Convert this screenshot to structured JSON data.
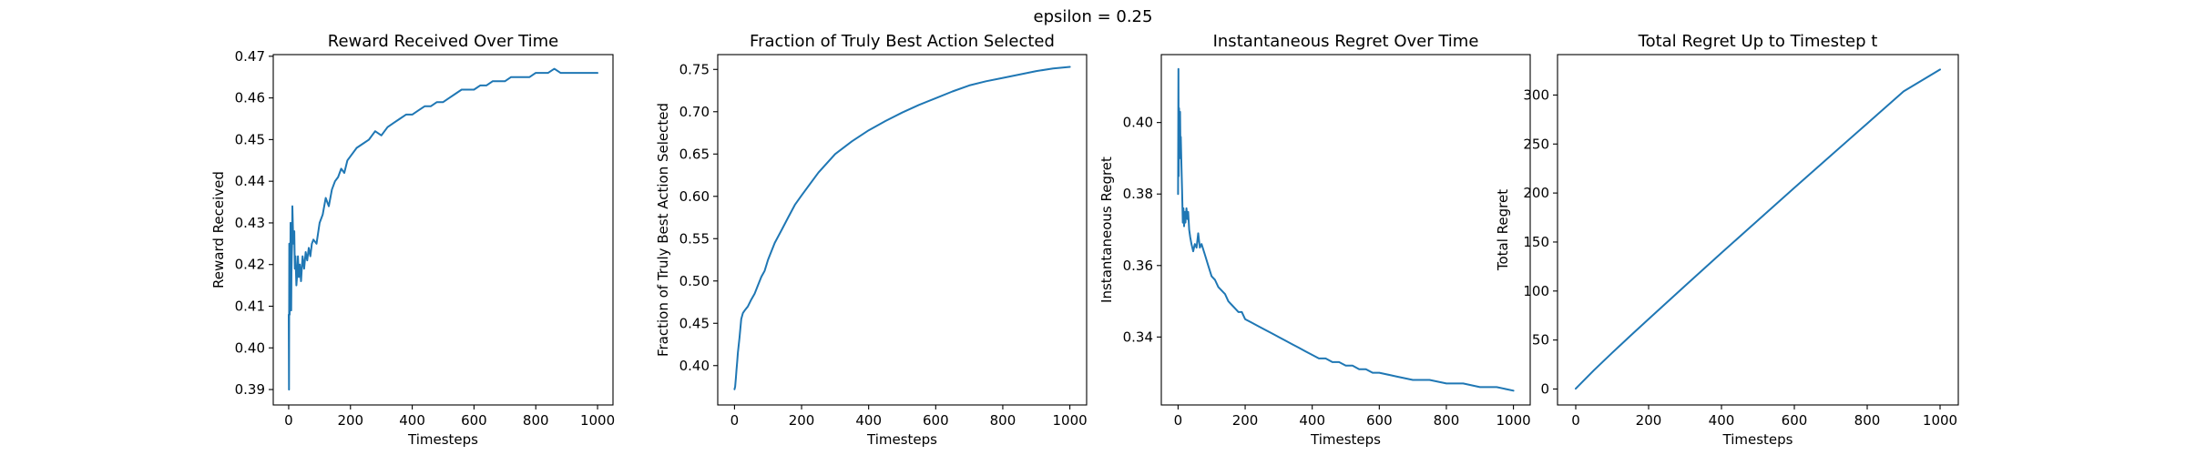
{
  "suptitle": "epsilon = 0.25",
  "chart_data": [
    {
      "type": "line",
      "title": "Reward Received Over Time",
      "xlabel": "Timesteps",
      "ylabel": "Reward Received",
      "xlim": [
        -50,
        1050
      ],
      "ylim": [
        0.3863,
        0.4704
      ],
      "xticks": [
        0,
        200,
        400,
        600,
        800,
        1000
      ],
      "yticks": [
        0.39,
        0.4,
        0.41,
        0.42,
        0.43,
        0.44,
        0.45,
        0.46,
        0.47
      ],
      "ytick_decimals": 2,
      "grid": false,
      "series": [
        {
          "x": [
            0,
            1,
            2,
            3,
            4,
            5,
            6,
            7,
            8,
            9,
            10,
            11,
            12,
            14,
            16,
            18,
            20,
            22,
            25,
            28,
            30,
            33,
            36,
            40,
            45,
            50,
            55,
            60,
            65,
            70,
            75,
            80,
            90,
            100,
            110,
            120,
            130,
            140,
            150,
            160,
            170,
            180,
            190,
            200,
            220,
            240,
            260,
            280,
            300,
            320,
            340,
            360,
            380,
            400,
            420,
            440,
            460,
            480,
            500,
            520,
            540,
            560,
            580,
            600,
            620,
            640,
            660,
            680,
            700,
            720,
            740,
            760,
            780,
            800,
            820,
            840,
            860,
            880,
            900,
            920,
            940,
            960,
            980,
            1000
          ],
          "y": [
            0.408,
            0.39,
            0.425,
            0.408,
            0.418,
            0.412,
            0.43,
            0.413,
            0.409,
            0.418,
            0.422,
            0.425,
            0.434,
            0.428,
            0.425,
            0.428,
            0.419,
            0.422,
            0.415,
            0.418,
            0.422,
            0.417,
            0.42,
            0.416,
            0.422,
            0.419,
            0.423,
            0.421,
            0.424,
            0.422,
            0.425,
            0.426,
            0.425,
            0.43,
            0.432,
            0.436,
            0.434,
            0.438,
            0.44,
            0.441,
            0.443,
            0.442,
            0.445,
            0.446,
            0.448,
            0.449,
            0.45,
            0.452,
            0.451,
            0.453,
            0.454,
            0.455,
            0.456,
            0.456,
            0.457,
            0.458,
            0.458,
            0.459,
            0.459,
            0.46,
            0.461,
            0.462,
            0.462,
            0.462,
            0.463,
            0.463,
            0.464,
            0.464,
            0.464,
            0.465,
            0.465,
            0.465,
            0.465,
            0.466,
            0.466,
            0.466,
            0.467,
            0.466,
            0.466,
            0.466,
            0.466,
            0.466,
            0.466,
            0.466
          ]
        }
      ]
    },
    {
      "type": "line",
      "title": "Fraction of Truly Best Action Selected",
      "xlabel": "Timesteps",
      "ylabel": "Fraction of Truly Best Action Selected",
      "xlim": [
        -50,
        1050
      ],
      "ylim": [
        0.3535,
        0.7675
      ],
      "xticks": [
        0,
        200,
        400,
        600,
        800,
        1000
      ],
      "yticks": [
        0.4,
        0.45,
        0.5,
        0.55,
        0.6,
        0.65,
        0.7,
        0.75
      ],
      "ytick_decimals": 2,
      "grid": false,
      "series": [
        {
          "x": [
            0,
            2,
            4,
            6,
            8,
            10,
            15,
            20,
            25,
            30,
            40,
            50,
            60,
            70,
            80,
            90,
            100,
            120,
            140,
            160,
            180,
            200,
            250,
            300,
            350,
            400,
            450,
            500,
            550,
            600,
            650,
            700,
            750,
            800,
            850,
            900,
            950,
            1000
          ],
          "y": [
            0.372,
            0.375,
            0.385,
            0.395,
            0.405,
            0.415,
            0.433,
            0.455,
            0.462,
            0.465,
            0.47,
            0.478,
            0.485,
            0.495,
            0.505,
            0.512,
            0.525,
            0.545,
            0.56,
            0.575,
            0.59,
            0.601,
            0.628,
            0.65,
            0.665,
            0.678,
            0.689,
            0.699,
            0.708,
            0.716,
            0.724,
            0.731,
            0.736,
            0.74,
            0.744,
            0.748,
            0.751,
            0.753
          ]
        }
      ]
    },
    {
      "type": "line",
      "title": "Instantaneous Regret Over Time",
      "xlabel": "Timesteps",
      "ylabel": "Instantaneous Regret",
      "xlim": [
        -50,
        1050
      ],
      "ylim": [
        0.321,
        0.419
      ],
      "xticks": [
        0,
        200,
        400,
        600,
        800,
        1000
      ],
      "yticks": [
        0.34,
        0.36,
        0.38,
        0.4
      ],
      "ytick_decimals": 2,
      "grid": false,
      "series": [
        {
          "x": [
            0,
            1,
            2,
            3,
            4,
            5,
            6,
            7,
            8,
            10,
            12,
            14,
            16,
            18,
            20,
            22,
            25,
            28,
            30,
            33,
            36,
            40,
            45,
            50,
            55,
            60,
            65,
            70,
            80,
            90,
            100,
            110,
            120,
            130,
            140,
            150,
            160,
            170,
            180,
            190,
            200,
            220,
            240,
            260,
            280,
            300,
            320,
            340,
            360,
            380,
            400,
            420,
            440,
            460,
            480,
            500,
            520,
            540,
            560,
            580,
            600,
            650,
            700,
            750,
            800,
            850,
            900,
            950,
            1000
          ],
          "y": [
            0.38,
            0.415,
            0.385,
            0.404,
            0.398,
            0.39,
            0.403,
            0.393,
            0.396,
            0.388,
            0.381,
            0.372,
            0.376,
            0.371,
            0.375,
            0.372,
            0.376,
            0.373,
            0.375,
            0.37,
            0.368,
            0.366,
            0.364,
            0.366,
            0.365,
            0.369,
            0.365,
            0.366,
            0.363,
            0.36,
            0.357,
            0.356,
            0.354,
            0.353,
            0.352,
            0.35,
            0.349,
            0.348,
            0.347,
            0.347,
            0.345,
            0.344,
            0.343,
            0.342,
            0.341,
            0.34,
            0.339,
            0.338,
            0.337,
            0.336,
            0.335,
            0.334,
            0.334,
            0.333,
            0.333,
            0.332,
            0.332,
            0.331,
            0.331,
            0.33,
            0.33,
            0.329,
            0.328,
            0.328,
            0.327,
            0.327,
            0.326,
            0.326,
            0.325
          ]
        }
      ]
    },
    {
      "type": "line",
      "title": "Total Regret Up to Timestep t",
      "xlabel": "Timesteps",
      "ylabel": "Total Regret",
      "xlim": [
        -50,
        1050
      ],
      "ylim": [
        -16.25,
        341.25
      ],
      "xticks": [
        0,
        200,
        400,
        600,
        800,
        1000
      ],
      "yticks": [
        0,
        50,
        100,
        150,
        200,
        250,
        300
      ],
      "ytick_decimals": 0,
      "grid": false,
      "series": [
        {
          "x": [
            0,
            20,
            50,
            100,
            150,
            200,
            300,
            400,
            500,
            600,
            700,
            800,
            900,
            1000
          ],
          "y": [
            0.4,
            8.0,
            19.2,
            37.0,
            54.3,
            71.4,
            105.3,
            138.9,
            172.2,
            205.3,
            238.2,
            271.0,
            303.7,
            326.0
          ]
        }
      ]
    }
  ]
}
